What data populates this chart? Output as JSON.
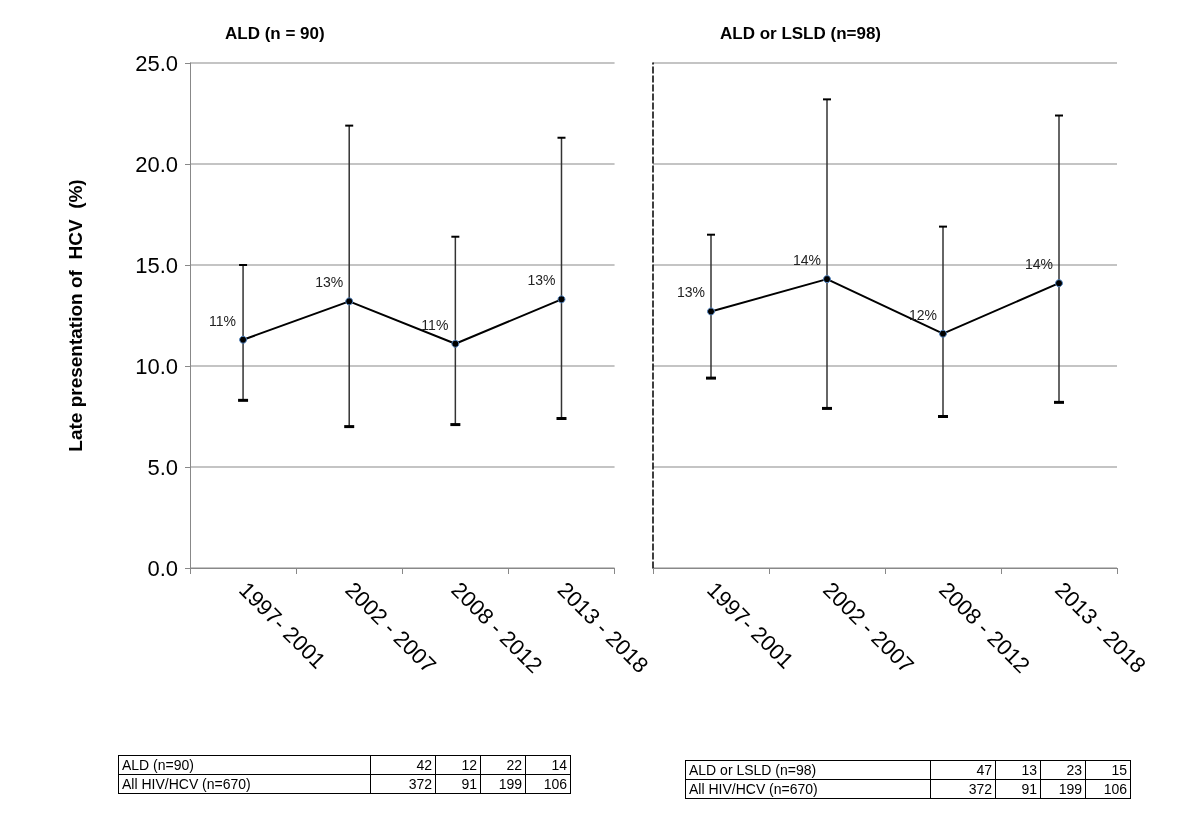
{
  "chart_data": [
    {
      "type": "line",
      "title": "ALD (n = 90)",
      "ylabel": "Late presentation of  HCV  (%)",
      "categories": [
        "1997- 2001",
        "2002 - 2007",
        "2008 - 2012",
        "2013 - 2018"
      ],
      "series": [
        {
          "color": "#000000",
          "values": [
            11.3,
            13.2,
            11.1,
            13.3
          ],
          "errors": [
            [
              8.3,
              15.0
            ],
            [
              7.0,
              21.9
            ],
            [
              7.1,
              16.4
            ],
            [
              7.4,
              21.3
            ]
          ],
          "value_labels": [
            "11%",
            "13%",
            "11%",
            "13%"
          ]
        }
      ],
      "ylim": [
        0,
        25
      ],
      "yticks": [
        {
          "value": 0,
          "label": "0.0"
        },
        {
          "value": 5,
          "label": "5.0"
        },
        {
          "value": 10,
          "label": "10.0"
        },
        {
          "value": 15,
          "label": "15.0"
        },
        {
          "value": 20,
          "label": "20.0"
        },
        {
          "value": 25,
          "label": "25.0"
        }
      ],
      "grid": "y",
      "marker": "circle",
      "line_style": "solid",
      "annotations": [
        "ALD (n=90)",
        "42",
        "12",
        "22",
        "14",
        "All HIV/HCV (n=670)",
        "372",
        "91",
        "199",
        "106"
      ]
    },
    {
      "type": "line",
      "title": "ALD or LSLD (n=98)",
      "categories": [
        "1997- 2001",
        "2002 - 2007",
        "2008 - 2012",
        "2013 - 2018"
      ],
      "series": [
        {
          "color": "#000000",
          "values": [
            12.7,
            14.3,
            11.6,
            14.1
          ],
          "errors": [
            [
              9.4,
              16.5
            ],
            [
              7.9,
              23.2
            ],
            [
              7.5,
              16.9
            ],
            [
              8.2,
              22.4
            ]
          ],
          "value_labels": [
            "13%",
            "14%",
            "12%",
            "14%"
          ]
        }
      ],
      "ylim": [
        0,
        25
      ],
      "yticks": [
        0,
        5,
        10,
        15,
        20,
        25
      ],
      "grid": "y",
      "marker": "circle",
      "line_style": "solid",
      "tick_labels": "x",
      "annotations": [
        "ALD or LSLD (n=98)",
        "47",
        "13",
        "23",
        "15",
        "All HIV/HCV (n=670)",
        "372",
        "91",
        "199",
        "106"
      ]
    }
  ]
}
